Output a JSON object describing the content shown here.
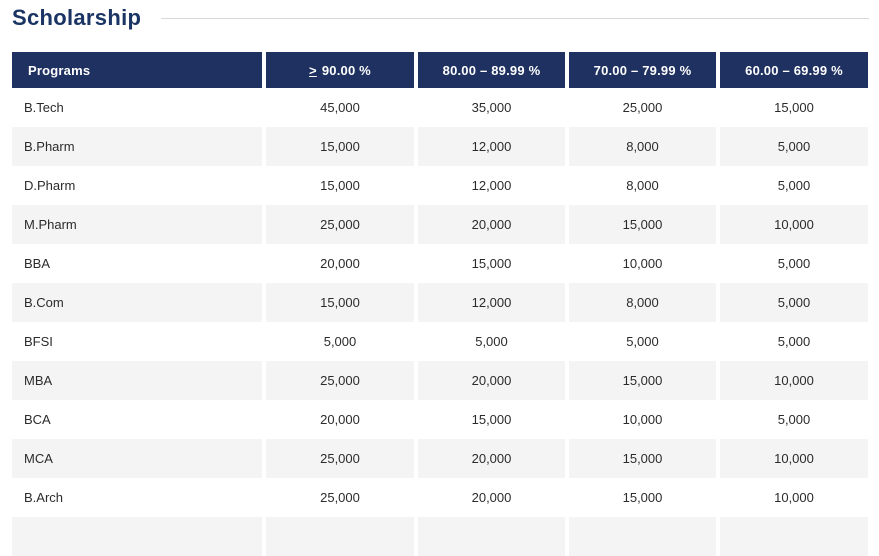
{
  "page": {
    "title": "Scholarship"
  },
  "colors": {
    "header_bg": "#1f3160",
    "title_text": "#1a3464",
    "row_stripe": "#f4f4f4",
    "body_text": "#2b2b2b",
    "divider": "#d9d9d9"
  },
  "table": {
    "header": {
      "programs": "Programs",
      "col_90_symbol": ">",
      "col_90_text": "90.00 %",
      "col_80": "80.00 – 89.99 %",
      "col_70": "70.00 – 79.99 %",
      "col_60": "60.00 – 69.99 %"
    },
    "rows": [
      {
        "program": "B.Tech",
        "values": [
          "45,000",
          "35,000",
          "25,000",
          "15,000"
        ]
      },
      {
        "program": "B.Pharm",
        "values": [
          "15,000",
          "12,000",
          "8,000",
          "5,000"
        ]
      },
      {
        "program": "D.Pharm",
        "values": [
          "15,000",
          "12,000",
          "8,000",
          "5,000"
        ]
      },
      {
        "program": "M.Pharm",
        "values": [
          "25,000",
          "20,000",
          "15,000",
          "10,000"
        ]
      },
      {
        "program": "BBA",
        "values": [
          "20,000",
          "15,000",
          "10,000",
          "5,000"
        ]
      },
      {
        "program": "B.Com",
        "values": [
          "15,000",
          "12,000",
          "8,000",
          "5,000"
        ]
      },
      {
        "program": "BFSI",
        "values": [
          "5,000",
          "5,000",
          "5,000",
          "5,000"
        ]
      },
      {
        "program": "MBA",
        "values": [
          "25,000",
          "20,000",
          "15,000",
          "10,000"
        ]
      },
      {
        "program": "BCA",
        "values": [
          "20,000",
          "15,000",
          "10,000",
          "5,000"
        ]
      },
      {
        "program": "MCA",
        "values": [
          "25,000",
          "20,000",
          "15,000",
          "10,000"
        ]
      },
      {
        "program": "B.Arch",
        "values": [
          "25,000",
          "20,000",
          "15,000",
          "10,000"
        ]
      }
    ]
  }
}
